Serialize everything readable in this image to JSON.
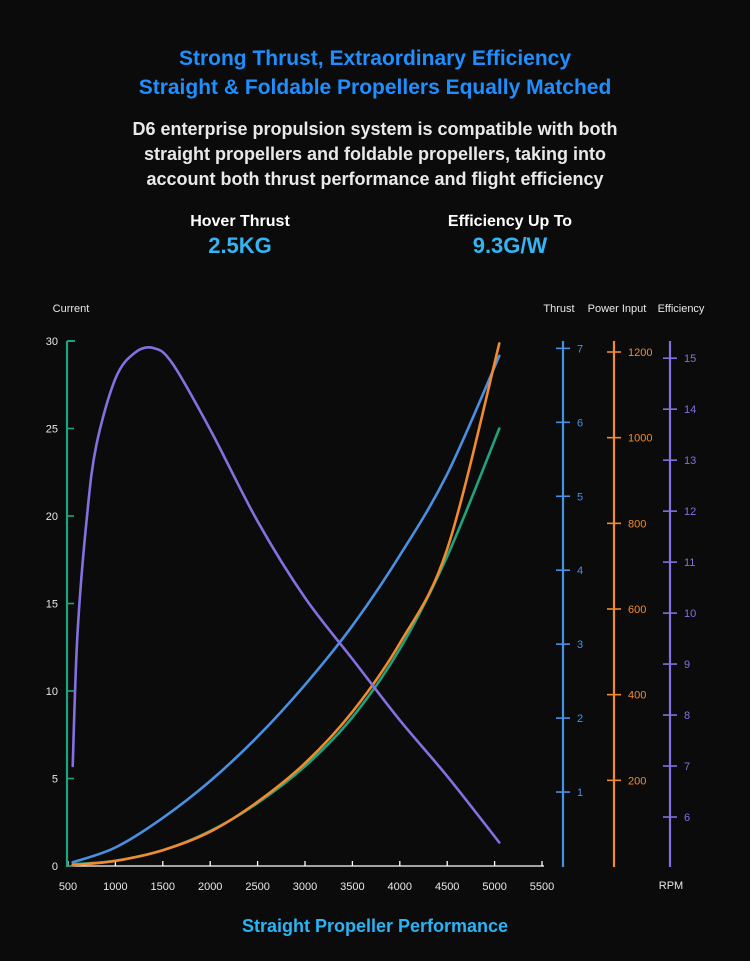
{
  "header": {
    "title_line1": "Strong Thrust, Extraordinary Efficiency",
    "title_line2": "Straight & Foldable Propellers Equally Matched",
    "desc_line1": "D6 enterprise propulsion system is compatible with both",
    "desc_line2": "straight propellers and foldable propellers, taking into",
    "desc_line3": "account both thrust performance and flight efficiency"
  },
  "stats": [
    {
      "label": "Hover Thrust",
      "value": "2.5KG"
    },
    {
      "label": "Efficiency Up To",
      "value": "9.3G/W"
    }
  ],
  "footer": {
    "caption": "Straight Propeller Performance"
  },
  "colors": {
    "title": "#1f8fff",
    "value": "#34b4f0",
    "current": "#1fa37f",
    "thrust": "#4a90e2",
    "power": "#f28a2e",
    "efficiency": "#8470e0"
  },
  "chart_data": {
    "type": "line",
    "xlabel": "RPM",
    "xlim": [
      500,
      5500
    ],
    "x_ticks": [
      500,
      1000,
      1500,
      2000,
      2500,
      3000,
      3500,
      4000,
      4500,
      5000,
      5500
    ],
    "axes": [
      {
        "key": "current",
        "label": "Current",
        "range": [
          0,
          30
        ],
        "ticks": [
          0,
          5,
          10,
          15,
          20,
          25,
          30
        ],
        "color": "#1fa37f"
      },
      {
        "key": "thrust",
        "label": "Thrust",
        "range": [
          0,
          7.6
        ],
        "ticks": [
          1,
          2,
          3,
          4,
          5,
          6,
          7
        ],
        "color": "#4a90e2"
      },
      {
        "key": "power",
        "label": "Power Input",
        "range": [
          0,
          1200
        ],
        "ticks": [
          200,
          400,
          600,
          800,
          1000,
          1200
        ],
        "color": "#f28a2e"
      },
      {
        "key": "efficiency",
        "label": "Efficiency",
        "range": [
          5,
          15.2
        ],
        "ticks": [
          6,
          7,
          8,
          9,
          10,
          11,
          12,
          13,
          14,
          15
        ],
        "color": "#8470e0"
      }
    ],
    "series": [
      {
        "axis": "current",
        "color": "#1fa37f",
        "x": [
          550,
          1000,
          1500,
          2000,
          2500,
          3000,
          3500,
          4000,
          4500,
          5050
        ],
        "values": [
          0.1,
          0.3,
          0.9,
          2.0,
          3.6,
          5.7,
          8.5,
          12.4,
          17.7,
          25.0
        ]
      },
      {
        "axis": "thrust",
        "color": "#4a90e2",
        "x": [
          550,
          1000,
          1500,
          2000,
          2500,
          3000,
          3500,
          4000,
          4500,
          5050
        ],
        "values": [
          0.05,
          0.25,
          0.65,
          1.15,
          1.75,
          2.45,
          3.25,
          4.2,
          5.3,
          6.9
        ]
      },
      {
        "axis": "power",
        "color": "#f28a2e",
        "x": [
          550,
          1000,
          1500,
          2000,
          2500,
          3000,
          3500,
          4000,
          4500,
          5050
        ],
        "values": [
          2,
          12,
          37,
          80,
          150,
          240,
          360,
          520,
          740,
          1220
        ]
      },
      {
        "axis": "efficiency",
        "color": "#8470e0",
        "x": [
          550,
          600,
          700,
          800,
          1000,
          1200,
          1400,
          1600,
          2000,
          2500,
          3000,
          3500,
          4000,
          4500,
          5050
        ],
        "values": [
          7.0,
          9.6,
          11.9,
          13.3,
          14.6,
          15.1,
          15.2,
          14.9,
          13.6,
          11.8,
          10.3,
          9.1,
          7.9,
          6.8,
          5.5
        ]
      }
    ]
  }
}
